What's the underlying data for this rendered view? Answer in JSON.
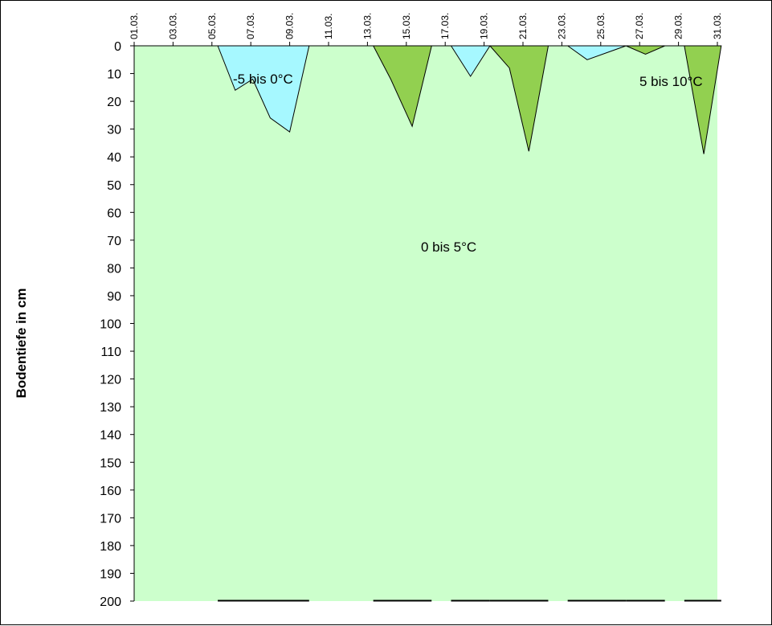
{
  "chart_data": {
    "type": "area",
    "title": "",
    "ylabel": "Bodentiefe in cm",
    "xlabel": "",
    "x_axis_position": "top",
    "y_inverted": true,
    "ylim": [
      0,
      200
    ],
    "y_ticks": [
      0,
      10,
      20,
      30,
      40,
      50,
      60,
      70,
      80,
      90,
      100,
      110,
      120,
      130,
      140,
      150,
      160,
      170,
      180,
      190,
      200
    ],
    "x_range_days": [
      1,
      31
    ],
    "x_ticks": [
      {
        "day": 1,
        "label": "01.03."
      },
      {
        "day": 3,
        "label": "03.03."
      },
      {
        "day": 5,
        "label": "05.03."
      },
      {
        "day": 7,
        "label": "07.03."
      },
      {
        "day": 9,
        "label": "09.03."
      },
      {
        "day": 11,
        "label": "11.03."
      },
      {
        "day": 13,
        "label": "13.03."
      },
      {
        "day": 15,
        "label": "15.03."
      },
      {
        "day": 17,
        "label": "17.03."
      },
      {
        "day": 19,
        "label": "19.03."
      },
      {
        "day": 21,
        "label": "21.03."
      },
      {
        "day": 23,
        "label": "23.03."
      },
      {
        "day": 25,
        "label": "25.03."
      },
      {
        "day": 27,
        "label": "27.03."
      },
      {
        "day": 29,
        "label": "29.03."
      },
      {
        "day": 31,
        "label": "31.03."
      }
    ],
    "background_zone": {
      "label": "0 bis 5°C",
      "color": "#ccffcc"
    },
    "zone_labels": {
      "minus5_0": "-5 bis 0°C",
      "range_0_5": "0 bis 5°C",
      "range_5_10": "5 bis 10°C"
    },
    "colors": {
      "minus5_0": "#a6f8ff",
      "range_0_5": "#ccffcc",
      "range_5_10": "#92d050"
    },
    "series": [
      {
        "zone": "minus5_0",
        "points": [
          [
            5.3,
            0
          ],
          [
            6.2,
            16
          ],
          [
            7.1,
            12
          ],
          [
            8.0,
            26
          ],
          [
            9.0,
            31
          ],
          [
            10.0,
            0
          ]
        ]
      },
      {
        "zone": "range_5_10",
        "points": [
          [
            13.3,
            0
          ],
          [
            14.2,
            12
          ],
          [
            15.3,
            29
          ],
          [
            16.3,
            0
          ]
        ]
      },
      {
        "zone": "minus5_0",
        "points": [
          [
            17.3,
            0
          ],
          [
            18.3,
            11
          ],
          [
            19.3,
            0
          ]
        ]
      },
      {
        "zone": "range_5_10",
        "points": [
          [
            19.3,
            0
          ],
          [
            20.3,
            8
          ],
          [
            21.3,
            38
          ],
          [
            22.3,
            0
          ]
        ]
      },
      {
        "zone": "minus5_0",
        "points": [
          [
            23.3,
            0
          ],
          [
            24.3,
            5
          ],
          [
            26.3,
            0
          ]
        ]
      },
      {
        "zone": "range_5_10",
        "points": [
          [
            26.3,
            0
          ],
          [
            27.3,
            3
          ],
          [
            28.3,
            0
          ]
        ]
      },
      {
        "zone": "range_5_10",
        "points": [
          [
            29.3,
            0
          ],
          [
            30.3,
            39
          ],
          [
            31.2,
            0
          ]
        ]
      }
    ]
  }
}
